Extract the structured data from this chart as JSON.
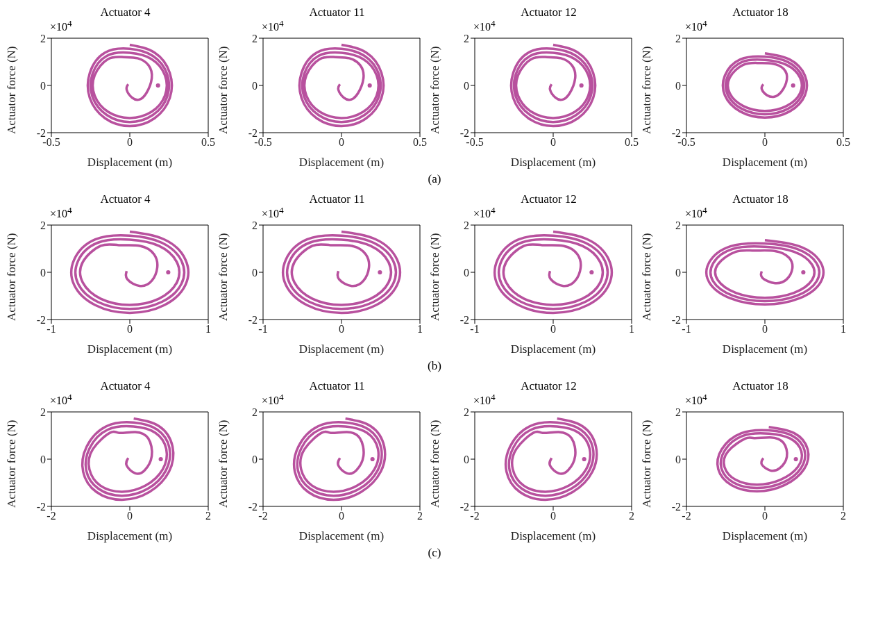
{
  "chart_data": [
    {
      "type": "line",
      "title": "Actuator 4",
      "xlabel": "Displacement (m)",
      "ylabel": "Actuator force (N)",
      "annotations": [
        "×10$^{4}$",
        "(a)"
      ],
      "xlim": [
        -0.5,
        0.5
      ],
      "xticks": [
        -0.5,
        0,
        0.5
      ],
      "ylim": [
        -2,
        2
      ],
      "yticks": [
        -2,
        0,
        2
      ],
      "marker": "none",
      "line_style": "solid",
      "series": [
        {
          "color": "#b8519e",
          "x": [
            -0.01,
            -0.02,
            0.015,
            0.06,
            0.105,
            0.14,
            0.12,
            0.05,
            -0.04,
            -0.138,
            -0.224,
            -0.224,
            -0.138,
            0,
            0.138,
            0.224,
            0.224,
            0.138,
            0,
            -0.147,
            -0.238,
            -0.238,
            -0.147,
            0,
            0.147,
            0.238,
            0.238,
            0.147,
            0,
            -0.158,
            -0.255,
            -0.255,
            -0.158,
            0,
            0.158,
            0.255,
            0.255,
            0.158,
            0
          ],
          "values": [
            0.05,
            -0.18,
            -0.52,
            -0.6,
            -0.33,
            0.3,
            0.85,
            1.15,
            1.2,
            1.12,
            0.43,
            -0.43,
            -1.12,
            -1.38,
            -1.12,
            -0.43,
            0.43,
            1.12,
            1.38,
            1.25,
            0.48,
            -0.48,
            -1.25,
            -1.55,
            -1.25,
            -0.48,
            0.48,
            1.25,
            1.55,
            1.39,
            0.53,
            -0.53,
            -1.39,
            -1.72,
            -1.39,
            -0.53,
            0.53,
            1.39,
            1.72
          ]
        },
        {
          "type": "scatter",
          "color": "#b8519e",
          "x": [
            0.18
          ],
          "values": [
            0
          ]
        }
      ]
    },
    {
      "type": "line",
      "title": "Actuator 11",
      "xlabel": "Displacement (m)",
      "ylabel": "Actuator force (N)",
      "annotations": [
        "×10$^{4}$"
      ],
      "xlim": [
        -0.5,
        0.5
      ],
      "xticks": [
        -0.5,
        0,
        0.5
      ],
      "ylim": [
        -2,
        2
      ],
      "yticks": [
        -2,
        0,
        2
      ],
      "marker": "none",
      "line_style": "solid",
      "series": [
        {
          "color": "#b8519e",
          "x": [
            -0.01,
            -0.02,
            0.015,
            0.06,
            0.105,
            0.14,
            0.12,
            0.05,
            -0.04,
            -0.138,
            -0.224,
            -0.224,
            -0.138,
            0,
            0.138,
            0.224,
            0.224,
            0.138,
            0,
            -0.147,
            -0.238,
            -0.238,
            -0.147,
            0,
            0.147,
            0.238,
            0.238,
            0.147,
            0,
            -0.158,
            -0.255,
            -0.255,
            -0.158,
            0,
            0.158,
            0.255,
            0.255,
            0.158,
            0
          ],
          "values": [
            0.05,
            -0.18,
            -0.52,
            -0.6,
            -0.33,
            0.3,
            0.85,
            1.15,
            1.2,
            1.12,
            0.43,
            -0.43,
            -1.12,
            -1.38,
            -1.12,
            -0.43,
            0.43,
            1.12,
            1.38,
            1.25,
            0.48,
            -0.48,
            -1.25,
            -1.55,
            -1.25,
            -0.48,
            0.48,
            1.25,
            1.55,
            1.39,
            0.53,
            -0.53,
            -1.39,
            -1.72,
            -1.39,
            -0.53,
            0.53,
            1.39,
            1.72
          ]
        },
        {
          "type": "scatter",
          "color": "#b8519e",
          "x": [
            0.18
          ],
          "values": [
            0
          ]
        }
      ]
    },
    {
      "type": "line",
      "title": "Actuator 12",
      "xlabel": "Displacement (m)",
      "ylabel": "Actuator force (N)",
      "annotations": [
        "×10$^{4}$"
      ],
      "xlim": [
        -0.5,
        0.5
      ],
      "xticks": [
        -0.5,
        0,
        0.5
      ],
      "ylim": [
        -2,
        2
      ],
      "yticks": [
        -2,
        0,
        2
      ],
      "marker": "none",
      "line_style": "solid",
      "series": [
        {
          "color": "#b8519e",
          "x": [
            -0.01,
            -0.02,
            0.015,
            0.06,
            0.105,
            0.14,
            0.12,
            0.05,
            -0.04,
            -0.138,
            -0.224,
            -0.224,
            -0.138,
            0,
            0.138,
            0.224,
            0.224,
            0.138,
            0,
            -0.147,
            -0.238,
            -0.238,
            -0.147,
            0,
            0.147,
            0.238,
            0.238,
            0.147,
            0,
            -0.158,
            -0.255,
            -0.255,
            -0.158,
            0,
            0.158,
            0.255,
            0.255,
            0.158,
            0
          ],
          "values": [
            0.05,
            -0.18,
            -0.52,
            -0.6,
            -0.33,
            0.3,
            0.85,
            1.15,
            1.2,
            1.12,
            0.43,
            -0.43,
            -1.12,
            -1.38,
            -1.12,
            -0.43,
            0.43,
            1.12,
            1.38,
            1.25,
            0.48,
            -0.48,
            -1.25,
            -1.55,
            -1.25,
            -0.48,
            0.48,
            1.25,
            1.55,
            1.39,
            0.53,
            -0.53,
            -1.39,
            -1.72,
            -1.39,
            -0.53,
            0.53,
            1.39,
            1.72
          ]
        },
        {
          "type": "scatter",
          "color": "#b8519e",
          "x": [
            0.18
          ],
          "values": [
            0
          ]
        }
      ]
    },
    {
      "type": "line",
      "title": "Actuator 18",
      "xlabel": "Displacement (m)",
      "ylabel": "Actuator force (N)",
      "annotations": [
        "×10$^{4}$"
      ],
      "xlim": [
        -0.5,
        0.5
      ],
      "xticks": [
        -0.5,
        0,
        0.5
      ],
      "ylim": [
        -2,
        2
      ],
      "yticks": [
        -2,
        0,
        2
      ],
      "marker": "none",
      "line_style": "solid",
      "series": [
        {
          "color": "#b8519e",
          "x": [
            -0.01,
            -0.02,
            0.015,
            0.06,
            0.105,
            0.14,
            0.12,
            0.05,
            -0.04,
            -0.138,
            -0.224,
            -0.224,
            -0.138,
            0,
            0.138,
            0.224,
            0.224,
            0.138,
            0,
            -0.147,
            -0.238,
            -0.238,
            -0.147,
            0,
            0.147,
            0.238,
            0.238,
            0.147,
            0,
            -0.158,
            -0.255,
            -0.255,
            -0.158,
            0,
            0.158,
            0.255,
            0.255,
            0.158,
            0
          ],
          "values": [
            0.05,
            -0.15,
            -0.42,
            -0.48,
            -0.27,
            0.25,
            0.7,
            0.92,
            0.95,
            0.87,
            0.33,
            -0.33,
            -0.87,
            -1.08,
            -0.87,
            -0.33,
            0.33,
            0.87,
            1.08,
            0.99,
            0.38,
            -0.38,
            -0.99,
            -1.22,
            -0.99,
            -0.38,
            0.38,
            0.99,
            1.22,
            1.1,
            0.42,
            -0.42,
            -1.1,
            -1.36,
            -1.1,
            -0.42,
            0.42,
            1.1,
            1.36
          ]
        },
        {
          "type": "scatter",
          "color": "#b8519e",
          "x": [
            0.18
          ],
          "values": [
            0
          ]
        }
      ]
    },
    {
      "type": "line",
      "title": "Actuator 4",
      "xlabel": "Displacement (m)",
      "ylabel": "Actuator force (N)",
      "annotations": [
        "×10$^{4}$",
        "(b)"
      ],
      "xlim": [
        -1,
        1
      ],
      "xticks": [
        -1,
        0,
        1
      ],
      "ylim": [
        -2,
        2
      ],
      "yticks": [
        -2,
        0,
        2
      ],
      "marker": "none",
      "line_style": "solid",
      "series": [
        {
          "color": "#b8519e",
          "x": [
            -0.04,
            -0.03,
            0.13,
            0.28,
            0.35,
            0.31,
            0.13,
            -0.14,
            -0.37,
            -0.6,
            -0.6,
            -0.37,
            0,
            0.37,
            0.6,
            0.6,
            0.37,
            0,
            -0.41,
            -0.66,
            -0.66,
            -0.41,
            0,
            0.41,
            0.66,
            0.66,
            0.41,
            0,
            -0.44,
            -0.71,
            -0.71,
            -0.44,
            0,
            0.44,
            0.71,
            0.71,
            0.44,
            0
          ],
          "values": [
            0.05,
            -0.3,
            -0.58,
            -0.36,
            0.2,
            0.76,
            1.12,
            1.15,
            1.12,
            0.43,
            -0.43,
            -1.12,
            -1.38,
            -1.12,
            -0.43,
            0.43,
            1.12,
            1.38,
            1.25,
            0.48,
            -0.48,
            -1.25,
            -1.55,
            -1.25,
            -0.48,
            0.48,
            1.25,
            1.55,
            1.39,
            0.53,
            -0.53,
            -1.39,
            -1.72,
            -1.39,
            -0.53,
            0.53,
            1.39,
            1.72
          ]
        },
        {
          "type": "scatter",
          "color": "#b8519e",
          "x": [
            0.49
          ],
          "values": [
            0
          ]
        }
      ]
    },
    {
      "type": "line",
      "title": "Actuator 11",
      "xlabel": "Displacement (m)",
      "ylabel": "Actuator force (N)",
      "annotations": [
        "×10$^{4}$"
      ],
      "xlim": [
        -1,
        1
      ],
      "xticks": [
        -1,
        0,
        1
      ],
      "ylim": [
        -2,
        2
      ],
      "yticks": [
        -2,
        0,
        2
      ],
      "marker": "none",
      "line_style": "solid",
      "series": [
        {
          "color": "#b8519e",
          "x": [
            -0.04,
            -0.03,
            0.13,
            0.28,
            0.35,
            0.31,
            0.13,
            -0.14,
            -0.37,
            -0.6,
            -0.6,
            -0.37,
            0,
            0.37,
            0.6,
            0.6,
            0.37,
            0,
            -0.41,
            -0.66,
            -0.66,
            -0.41,
            0,
            0.41,
            0.66,
            0.66,
            0.41,
            0,
            -0.44,
            -0.71,
            -0.71,
            -0.44,
            0,
            0.44,
            0.71,
            0.71,
            0.44,
            0
          ],
          "values": [
            0.05,
            -0.3,
            -0.58,
            -0.36,
            0.2,
            0.76,
            1.12,
            1.15,
            1.12,
            0.43,
            -0.43,
            -1.12,
            -1.38,
            -1.12,
            -0.43,
            0.43,
            1.12,
            1.38,
            1.25,
            0.48,
            -0.48,
            -1.25,
            -1.55,
            -1.25,
            -0.48,
            0.48,
            1.25,
            1.55,
            1.39,
            0.53,
            -0.53,
            -1.39,
            -1.72,
            -1.39,
            -0.53,
            0.53,
            1.39,
            1.72
          ]
        },
        {
          "type": "scatter",
          "color": "#b8519e",
          "x": [
            0.49
          ],
          "values": [
            0
          ]
        }
      ]
    },
    {
      "type": "line",
      "title": "Actuator 12",
      "xlabel": "Displacement (m)",
      "ylabel": "Actuator force (N)",
      "annotations": [
        "×10$^{4}$"
      ],
      "xlim": [
        -1,
        1
      ],
      "xticks": [
        -1,
        0,
        1
      ],
      "ylim": [
        -2,
        2
      ],
      "yticks": [
        -2,
        0,
        2
      ],
      "marker": "none",
      "line_style": "solid",
      "series": [
        {
          "color": "#b8519e",
          "x": [
            -0.04,
            -0.03,
            0.13,
            0.28,
            0.35,
            0.31,
            0.13,
            -0.14,
            -0.37,
            -0.6,
            -0.6,
            -0.37,
            0,
            0.37,
            0.6,
            0.6,
            0.37,
            0,
            -0.41,
            -0.66,
            -0.66,
            -0.41,
            0,
            0.41,
            0.66,
            0.66,
            0.41,
            0,
            -0.44,
            -0.71,
            -0.71,
            -0.44,
            0,
            0.44,
            0.71,
            0.71,
            0.44,
            0
          ],
          "values": [
            0.05,
            -0.3,
            -0.58,
            -0.36,
            0.2,
            0.76,
            1.12,
            1.15,
            1.12,
            0.43,
            -0.43,
            -1.12,
            -1.38,
            -1.12,
            -0.43,
            0.43,
            1.12,
            1.38,
            1.25,
            0.48,
            -0.48,
            -1.25,
            -1.55,
            -1.25,
            -0.48,
            0.48,
            1.25,
            1.55,
            1.39,
            0.53,
            -0.53,
            -1.39,
            -1.72,
            -1.39,
            -0.53,
            0.53,
            1.39,
            1.72
          ]
        },
        {
          "type": "scatter",
          "color": "#b8519e",
          "x": [
            0.49
          ],
          "values": [
            0
          ]
        }
      ]
    },
    {
      "type": "line",
      "title": "Actuator 18",
      "xlabel": "Displacement (m)",
      "ylabel": "Actuator force (N)",
      "annotations": [
        "×10$^{4}$"
      ],
      "xlim": [
        -1,
        1
      ],
      "xticks": [
        -1,
        0,
        1
      ],
      "ylim": [
        -2,
        2
      ],
      "yticks": [
        -2,
        0,
        2
      ],
      "marker": "none",
      "line_style": "solid",
      "series": [
        {
          "color": "#b8519e",
          "x": [
            -0.04,
            -0.03,
            0.13,
            0.28,
            0.35,
            0.31,
            0.13,
            -0.14,
            -0.37,
            -0.6,
            -0.6,
            -0.37,
            0,
            0.37,
            0.6,
            0.6,
            0.37,
            0,
            -0.41,
            -0.66,
            -0.66,
            -0.41,
            0,
            0.41,
            0.66,
            0.66,
            0.41,
            0,
            -0.44,
            -0.71,
            -0.71,
            -0.44,
            0,
            0.44,
            0.71,
            0.71,
            0.44,
            0
          ],
          "values": [
            0.04,
            -0.24,
            -0.46,
            -0.29,
            0.16,
            0.61,
            0.9,
            0.92,
            0.87,
            0.33,
            -0.33,
            -0.87,
            -1.08,
            -0.87,
            -0.33,
            0.33,
            0.87,
            1.08,
            0.99,
            0.38,
            -0.38,
            -0.99,
            -1.22,
            -0.99,
            -0.38,
            0.38,
            0.99,
            1.22,
            1.1,
            0.42,
            -0.42,
            -1.1,
            -1.36,
            -1.1,
            -0.42,
            0.42,
            1.1,
            1.36
          ]
        },
        {
          "type": "scatter",
          "color": "#b8519e",
          "x": [
            0.49
          ],
          "values": [
            0
          ]
        }
      ]
    },
    {
      "type": "line",
      "title": "Actuator 4",
      "xlabel": "Displacement (m)",
      "ylabel": "Actuator force (N)",
      "annotations": [
        "×10$^{4}$",
        "(c)"
      ],
      "xlim": [
        -2,
        2
      ],
      "xticks": [
        -2,
        0,
        2
      ],
      "ylim": [
        -2,
        2
      ],
      "yticks": [
        -2,
        0,
        2
      ],
      "marker": "none",
      "line_style": "solid",
      "series": [
        {
          "color": "#b8519e",
          "x": [
            -0.04,
            -0.08,
            0.14,
            0.38,
            0.56,
            0.47,
            0.14,
            -0.27,
            -0.5,
            -0.94,
            -1.03,
            -0.75,
            -0.2,
            0.4,
            0.84,
            0.93,
            0.65,
            0.1,
            -0.56,
            -1.02,
            -1.11,
            -0.8,
            -0.2,
            0.46,
            0.92,
            1.01,
            0.7,
            0.1,
            -0.6,
            -1.1,
            -1.19,
            -0.85,
            -0.2,
            0.5,
            1,
            1.09,
            0.75,
            0.1
          ],
          "values": [
            0.05,
            -0.27,
            -0.6,
            -0.47,
            0.13,
            0.88,
            1.15,
            1.11,
            1.12,
            0.43,
            -0.43,
            -1.12,
            -1.38,
            -1.12,
            -0.43,
            0.43,
            1.12,
            1.38,
            1.25,
            0.48,
            -0.48,
            -1.25,
            -1.55,
            -1.25,
            -0.48,
            0.48,
            1.25,
            1.55,
            1.39,
            0.53,
            -0.53,
            -1.39,
            -1.72,
            -1.39,
            -0.53,
            0.53,
            1.39,
            1.72
          ]
        },
        {
          "type": "scatter",
          "color": "#b8519e",
          "x": [
            0.79
          ],
          "values": [
            0
          ]
        }
      ]
    },
    {
      "type": "line",
      "title": "Actuator 11",
      "xlabel": "Displacement (m)",
      "ylabel": "Actuator force (N)",
      "annotations": [
        "×10$^{4}$"
      ],
      "xlim": [
        -2,
        2
      ],
      "xticks": [
        -2,
        0,
        2
      ],
      "ylim": [
        -2,
        2
      ],
      "yticks": [
        -2,
        0,
        2
      ],
      "marker": "none",
      "line_style": "solid",
      "series": [
        {
          "color": "#b8519e",
          "x": [
            -0.04,
            -0.08,
            0.14,
            0.38,
            0.56,
            0.47,
            0.14,
            -0.27,
            -0.5,
            -0.94,
            -1.03,
            -0.75,
            -0.2,
            0.4,
            0.84,
            0.93,
            0.65,
            0.1,
            -0.56,
            -1.02,
            -1.11,
            -0.8,
            -0.2,
            0.46,
            0.92,
            1.01,
            0.7,
            0.1,
            -0.6,
            -1.1,
            -1.19,
            -0.85,
            -0.2,
            0.5,
            1,
            1.09,
            0.75,
            0.1
          ],
          "values": [
            0.05,
            -0.27,
            -0.6,
            -0.47,
            0.13,
            0.88,
            1.15,
            1.11,
            1.12,
            0.43,
            -0.43,
            -1.12,
            -1.38,
            -1.12,
            -0.43,
            0.43,
            1.12,
            1.38,
            1.25,
            0.48,
            -0.48,
            -1.25,
            -1.55,
            -1.25,
            -0.48,
            0.48,
            1.25,
            1.55,
            1.39,
            0.53,
            -0.53,
            -1.39,
            -1.72,
            -1.39,
            -0.53,
            0.53,
            1.39,
            1.72
          ]
        },
        {
          "type": "scatter",
          "color": "#b8519e",
          "x": [
            0.79
          ],
          "values": [
            0
          ]
        }
      ]
    },
    {
      "type": "line",
      "title": "Actuator 12",
      "xlabel": "Displacement (m)",
      "ylabel": "Actuator force (N)",
      "annotations": [
        "×10$^{4}$"
      ],
      "xlim": [
        -2,
        2
      ],
      "xticks": [
        -2,
        0,
        2
      ],
      "ylim": [
        -2,
        2
      ],
      "yticks": [
        -2,
        0,
        2
      ],
      "marker": "none",
      "line_style": "solid",
      "series": [
        {
          "color": "#b8519e",
          "x": [
            -0.04,
            -0.08,
            0.14,
            0.38,
            0.56,
            0.47,
            0.14,
            -0.27,
            -0.5,
            -0.94,
            -1.03,
            -0.75,
            -0.2,
            0.4,
            0.84,
            0.93,
            0.65,
            0.1,
            -0.56,
            -1.02,
            -1.11,
            -0.8,
            -0.2,
            0.46,
            0.92,
            1.01,
            0.7,
            0.1,
            -0.6,
            -1.1,
            -1.19,
            -0.85,
            -0.2,
            0.5,
            1,
            1.09,
            0.75,
            0.1
          ],
          "values": [
            0.05,
            -0.27,
            -0.6,
            -0.47,
            0.13,
            0.88,
            1.15,
            1.11,
            1.12,
            0.43,
            -0.43,
            -1.12,
            -1.38,
            -1.12,
            -0.43,
            0.43,
            1.12,
            1.38,
            1.25,
            0.48,
            -0.48,
            -1.25,
            -1.55,
            -1.25,
            -0.48,
            0.48,
            1.25,
            1.55,
            1.39,
            0.53,
            -0.53,
            -1.39,
            -1.72,
            -1.39,
            -0.53,
            0.53,
            1.39,
            1.72
          ]
        },
        {
          "type": "scatter",
          "color": "#b8519e",
          "x": [
            0.79
          ],
          "values": [
            0
          ]
        }
      ]
    },
    {
      "type": "line",
      "title": "Actuator 18",
      "xlabel": "Displacement (m)",
      "ylabel": "Actuator force (N)",
      "annotations": [
        "×10$^{4}$"
      ],
      "xlim": [
        -2,
        2
      ],
      "xticks": [
        -2,
        0,
        2
      ],
      "ylim": [
        -2,
        2
      ],
      "yticks": [
        -2,
        0,
        2
      ],
      "marker": "none",
      "line_style": "solid",
      "series": [
        {
          "color": "#b8519e",
          "x": [
            -0.04,
            -0.08,
            0.14,
            0.38,
            0.56,
            0.47,
            0.14,
            -0.27,
            -0.5,
            -0.94,
            -1.03,
            -0.75,
            -0.2,
            0.4,
            0.84,
            0.93,
            0.65,
            0.1,
            -0.56,
            -1.02,
            -1.11,
            -0.8,
            -0.2,
            0.46,
            0.92,
            1.01,
            0.7,
            0.1,
            -0.6,
            -1.1,
            -1.19,
            -0.85,
            -0.2,
            0.5,
            1,
            1.09,
            0.75,
            0.1
          ],
          "values": [
            0.04,
            -0.22,
            -0.48,
            -0.38,
            0.1,
            0.7,
            0.92,
            0.89,
            0.87,
            0.33,
            -0.33,
            -0.87,
            -1.08,
            -0.87,
            -0.33,
            0.33,
            0.87,
            1.08,
            0.99,
            0.38,
            -0.38,
            -0.99,
            -1.22,
            -0.99,
            -0.38,
            0.38,
            0.99,
            1.22,
            1.1,
            0.42,
            -0.42,
            -1.1,
            -1.36,
            -1.1,
            -0.42,
            0.42,
            1.1,
            1.36
          ]
        },
        {
          "type": "scatter",
          "color": "#b8519e",
          "x": [
            0.79
          ],
          "values": [
            0
          ]
        }
      ]
    }
  ]
}
